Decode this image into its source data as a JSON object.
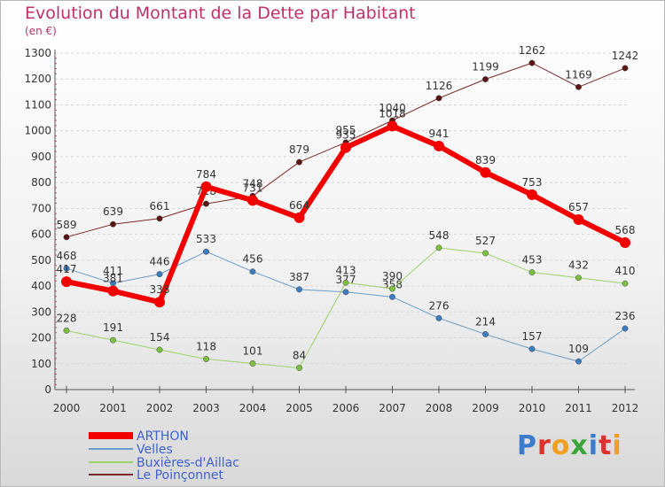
{
  "title": "Evolution du Montant de la Dette par Habitant",
  "subtitle": "(en €)",
  "logo": {
    "text": "Proxiti",
    "colors": [
      "#3c7ccc",
      "#e0322d",
      "#f0a020",
      "#3aa63a",
      "#3c7ccc",
      "#e0322d",
      "#f0a020"
    ]
  },
  "chart_data": {
    "type": "line",
    "x": [
      "2000",
      "2001",
      "2002",
      "2003",
      "2004",
      "2005",
      "2006",
      "2007",
      "2008",
      "2009",
      "2010",
      "2011",
      "2012"
    ],
    "ylim": [
      0,
      1300
    ],
    "yticks": [
      "0",
      "100",
      "200",
      "300",
      "400",
      "500",
      "600",
      "700",
      "800",
      "900",
      "1000",
      "1100",
      "1200",
      "1300"
    ],
    "grid": true,
    "legend_position": "bottom-left",
    "series": [
      {
        "name": "Le Poinçonnet",
        "color": "#7a2a2a",
        "marker": "#5a1515",
        "width": 1,
        "values": [
          589,
          639,
          661,
          718,
          748,
          879,
          955,
          1040,
          1126,
          1199,
          1262,
          1169,
          1242
        ],
        "labels": [
          "589",
          "639",
          "661",
          "718",
          "748",
          "879",
          "955",
          "1040",
          "1126",
          "1199",
          "1262",
          "1169",
          "1242"
        ]
      },
      {
        "name": "Velles",
        "color": "#6a9cc8",
        "marker": "#3c7cc0",
        "width": 1,
        "values": [
          468,
          411,
          446,
          533,
          456,
          387,
          377,
          358,
          276,
          214,
          157,
          109,
          236
        ],
        "labels": [
          "468",
          "411",
          "446",
          "533",
          "456",
          "387",
          "377",
          "358",
          "276",
          "214",
          "157",
          "109",
          "236"
        ]
      },
      {
        "name": "Buxières-d'Aillac",
        "color": "#9ad26a",
        "marker": "#7cc040",
        "width": 1,
        "values": [
          228,
          191,
          154,
          118,
          101,
          84,
          413,
          390,
          548,
          527,
          453,
          432,
          410
        ],
        "labels": [
          "228",
          "191",
          "154",
          "118",
          "101",
          "84",
          "413",
          "390",
          "548",
          "527",
          "453",
          "432",
          "410"
        ]
      },
      {
        "name": "ARTHON",
        "color": "#f20000",
        "marker": "#f20000",
        "width": 6,
        "values": [
          417,
          381,
          338,
          784,
          731,
          664,
          935,
          1018,
          941,
          839,
          753,
          657,
          568
        ],
        "labels": [
          "417",
          "381",
          "338",
          "784",
          "731",
          "664",
          "935",
          "1018",
          "941",
          "839",
          "753",
          "657",
          "568"
        ]
      }
    ],
    "legend": [
      "ARTHON",
      "Velles",
      "Buxières-d'Aillac",
      "Le Poinçonnet"
    ]
  }
}
